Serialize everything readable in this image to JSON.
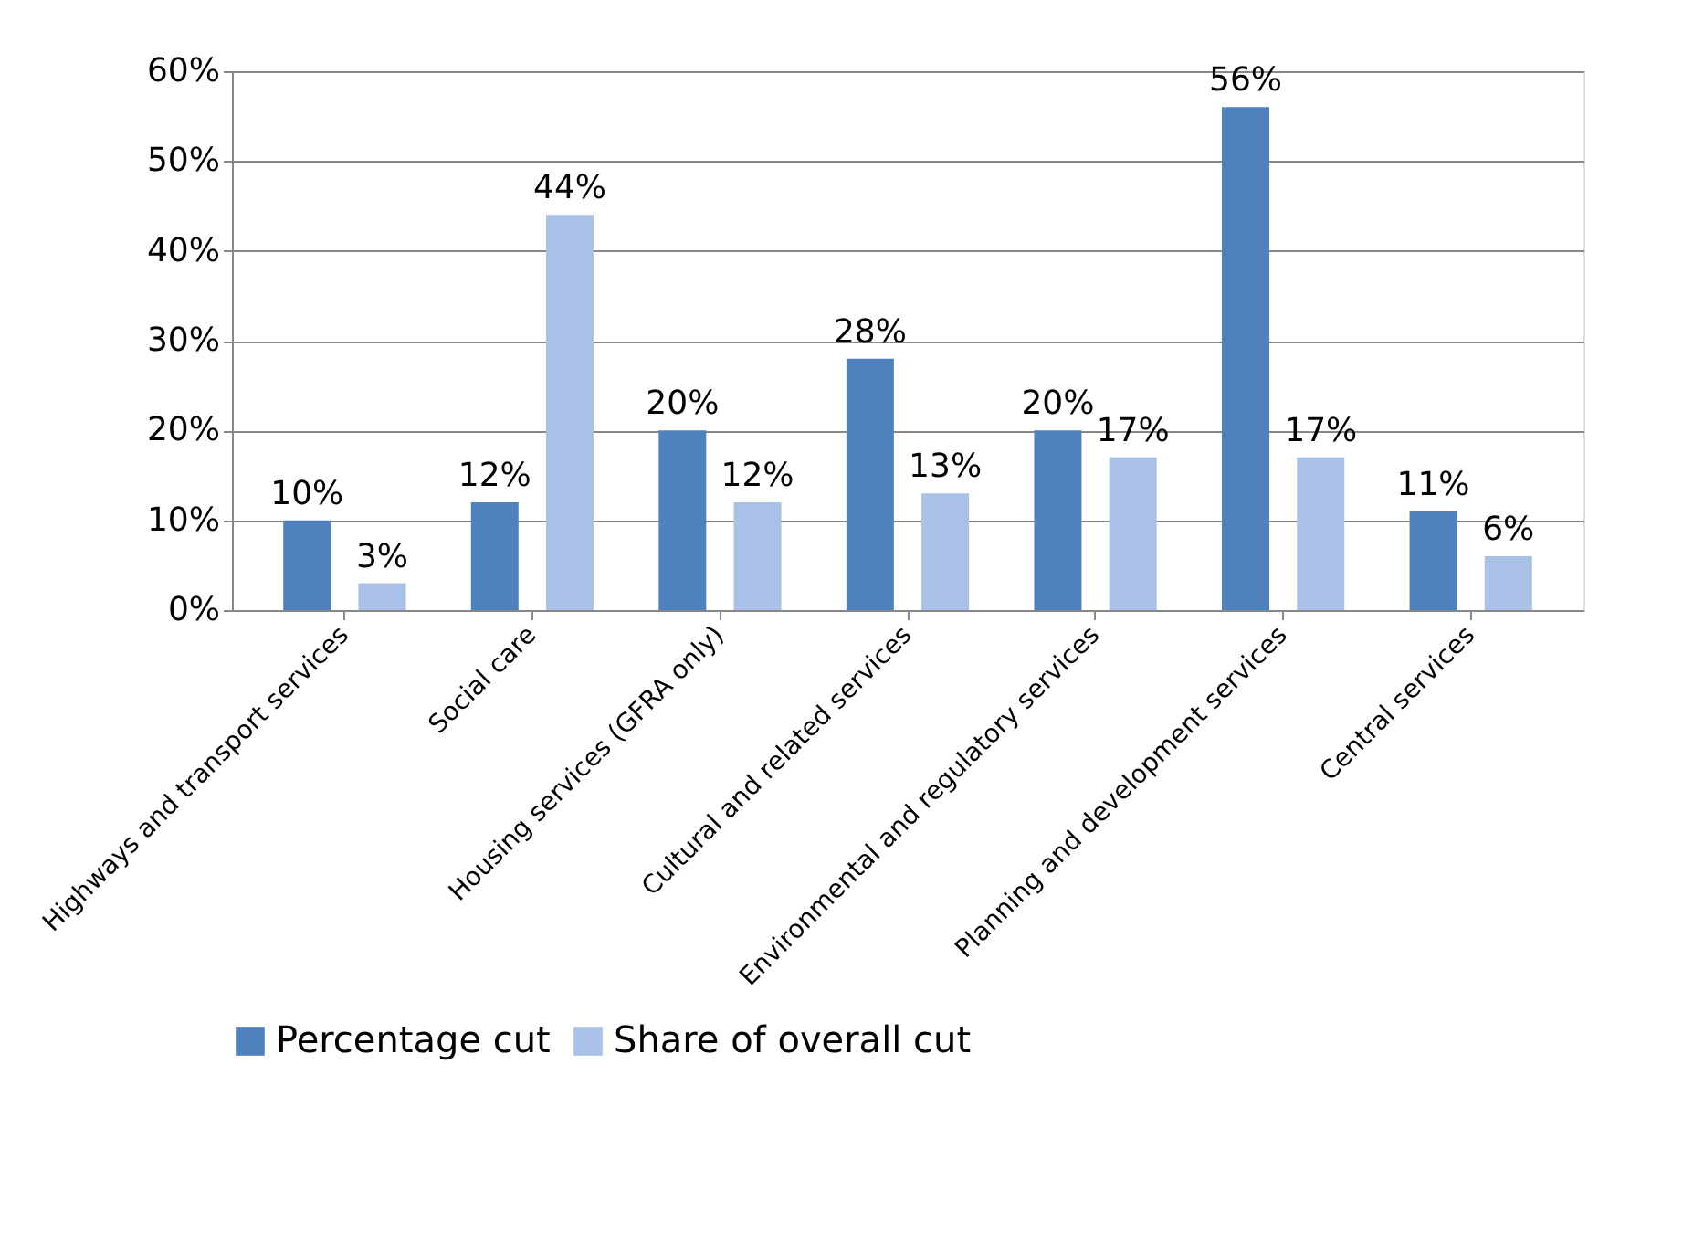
{
  "chart_data": {
    "type": "bar",
    "categories": [
      "Highways and transport services",
      "Social care",
      "Housing services (GFRA only)",
      "Cultural and related services",
      "Environmental and regulatory services",
      "Planning and development services",
      "Central services"
    ],
    "series": [
      {
        "name": "Percentage cut",
        "color": "#4f81bd",
        "values": [
          10,
          12,
          20,
          28,
          20,
          56,
          11
        ],
        "value_labels": [
          "10%",
          "12%",
          "20%",
          "28%",
          "20%",
          "56%",
          "11%"
        ]
      },
      {
        "name": "Share of overall cut",
        "color": "#a9c1e6",
        "values": [
          3,
          44,
          12,
          13,
          17,
          17,
          6
        ],
        "value_labels": [
          "3%",
          "44%",
          "12%",
          "13%",
          "17%",
          "17%",
          "6%"
        ]
      }
    ],
    "ylim": [
      0,
      60
    ],
    "yticks": [
      {
        "value": 0,
        "label": "0%"
      },
      {
        "value": 10,
        "label": "10%"
      },
      {
        "value": 20,
        "label": "20%"
      },
      {
        "value": 30,
        "label": "30%"
      },
      {
        "value": 40,
        "label": "40%"
      },
      {
        "value": 50,
        "label": "50%"
      },
      {
        "value": 60,
        "label": "60%"
      }
    ],
    "grid": "y",
    "legend": "bottom"
  }
}
